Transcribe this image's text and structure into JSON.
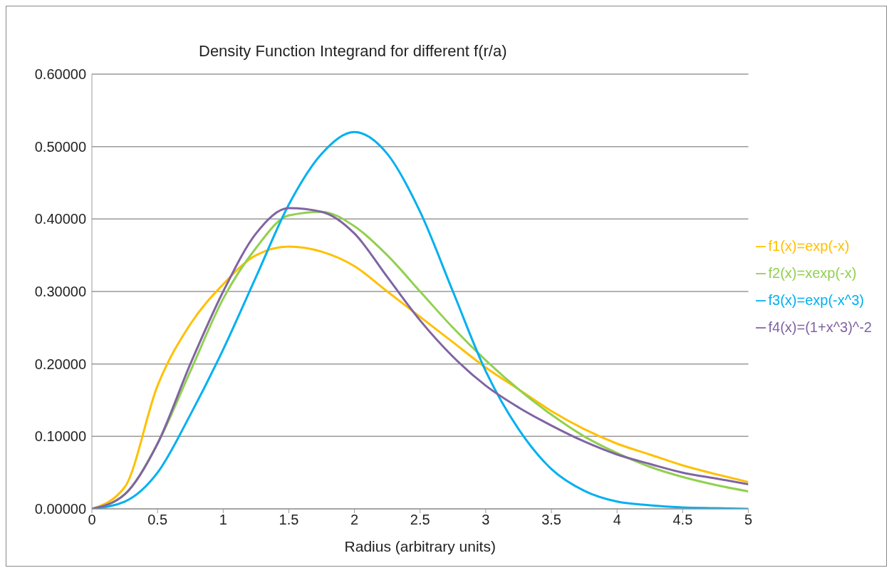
{
  "chart_data": {
    "type": "line",
    "title": "Density Function Integrand for different f(r/a)",
    "xlabel": "Radius (arbitrary units)",
    "x": [
      0,
      0.25,
      0.5,
      0.75,
      1,
      1.25,
      1.5,
      1.75,
      2,
      2.25,
      2.5,
      2.75,
      3,
      3.25,
      3.5,
      3.75,
      4,
      4.25,
      4.5,
      4.75,
      5
    ],
    "series": [
      {
        "name": "f1(x)=exp(-x)",
        "color": "#ffc000",
        "values": [
          0,
          0.03,
          0.17,
          0.255,
          0.31,
          0.35,
          0.362,
          0.355,
          0.335,
          0.3,
          0.265,
          0.23,
          0.195,
          0.165,
          0.135,
          0.11,
          0.09,
          0.075,
          0.06,
          0.048,
          0.037
        ]
      },
      {
        "name": "f2(x)=xexp(-x)",
        "color": "#92d050",
        "values": [
          0,
          0.02,
          0.09,
          0.19,
          0.29,
          0.36,
          0.405,
          0.41,
          0.39,
          0.35,
          0.3,
          0.25,
          0.205,
          0.165,
          0.13,
          0.1,
          0.077,
          0.058,
          0.044,
          0.033,
          0.024
        ]
      },
      {
        "name": "f3(x)=exp(-x^3)",
        "color": "#00b0f0",
        "values": [
          0,
          0.01,
          0.05,
          0.13,
          0.22,
          0.32,
          0.42,
          0.49,
          0.52,
          0.49,
          0.41,
          0.3,
          0.19,
          0.11,
          0.055,
          0.025,
          0.01,
          0.005,
          0.002,
          0.001,
          0
        ]
      },
      {
        "name": "f4(x)=(1+x^3)^-2",
        "color": "#8064a2",
        "values": [
          0,
          0.02,
          0.09,
          0.2,
          0.3,
          0.38,
          0.415,
          0.41,
          0.38,
          0.32,
          0.26,
          0.21,
          0.17,
          0.14,
          0.115,
          0.093,
          0.075,
          0.062,
          0.05,
          0.042,
          0.034
        ]
      }
    ],
    "xlim": [
      0,
      5
    ],
    "xticks": [
      0,
      0.5,
      1,
      1.5,
      2,
      2.5,
      3,
      3.5,
      4,
      4.5,
      5
    ],
    "ylim": [
      0,
      0.6
    ],
    "yticks": [
      {
        "value": 0,
        "label": "0.00000"
      },
      {
        "value": 0.1,
        "label": "0.10000"
      },
      {
        "value": 0.2,
        "label": "0.20000"
      },
      {
        "value": 0.3,
        "label": "0.30000"
      },
      {
        "value": 0.4,
        "label": "0.40000"
      },
      {
        "value": 0.5,
        "label": "0.50000"
      },
      {
        "value": 0.6,
        "label": "0.60000"
      }
    ],
    "grid": "y",
    "legend": "right",
    "marker": "none",
    "line_style": "solid"
  }
}
